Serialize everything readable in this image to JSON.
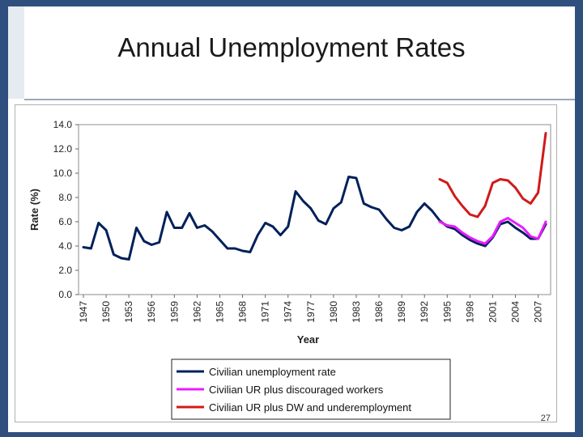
{
  "slide": {
    "title": "Annual Unemployment Rates",
    "page_number": "27"
  },
  "chart_data": {
    "type": "line",
    "title": "",
    "xlabel": "Year",
    "ylabel": "Rate (%)",
    "ylim": [
      0,
      14
    ],
    "yticks": [
      "0.0",
      "2.0",
      "4.0",
      "6.0",
      "8.0",
      "10.0",
      "12.0",
      "14.0"
    ],
    "xlim": [
      1947,
      2008
    ],
    "xticks": [
      "1947",
      "1950",
      "1953",
      "1956",
      "1959",
      "1962",
      "1965",
      "1968",
      "1971",
      "1974",
      "1977",
      "1980",
      "1983",
      "1986",
      "1989",
      "1992",
      "1995",
      "1998",
      "2001",
      "2004",
      "2007"
    ],
    "series": [
      {
        "name": "Civilian unemployment rate",
        "color": "#00205b",
        "x": [
          1947,
          1948,
          1949,
          1950,
          1951,
          1952,
          1953,
          1954,
          1955,
          1956,
          1957,
          1958,
          1959,
          1960,
          1961,
          1962,
          1963,
          1964,
          1965,
          1966,
          1967,
          1968,
          1969,
          1970,
          1971,
          1972,
          1973,
          1974,
          1975,
          1976,
          1977,
          1978,
          1979,
          1980,
          1981,
          1982,
          1983,
          1984,
          1985,
          1986,
          1987,
          1988,
          1989,
          1990,
          1991,
          1992,
          1993,
          1994,
          1995,
          1996,
          1997,
          1998,
          1999,
          2000,
          2001,
          2002,
          2003,
          2004,
          2005,
          2006,
          2007,
          2008
        ],
        "values": [
          3.9,
          3.8,
          5.9,
          5.3,
          3.3,
          3.0,
          2.9,
          5.5,
          4.4,
          4.1,
          4.3,
          6.8,
          5.5,
          5.5,
          6.7,
          5.5,
          5.7,
          5.2,
          4.5,
          3.8,
          3.8,
          3.6,
          3.5,
          4.9,
          5.9,
          5.6,
          4.9,
          5.6,
          8.5,
          7.7,
          7.1,
          6.1,
          5.8,
          7.1,
          7.6,
          9.7,
          9.6,
          7.5,
          7.2,
          7.0,
          6.2,
          5.5,
          5.3,
          5.6,
          6.8,
          7.5,
          6.9,
          6.1,
          5.6,
          5.4,
          4.9,
          4.5,
          4.2,
          4.0,
          4.7,
          5.8,
          6.0,
          5.5,
          5.1,
          4.6,
          4.6,
          5.8
        ]
      },
      {
        "name": "Civilian UR plus discouraged workers",
        "color": "#e81cff",
        "x": [
          1994,
          1995,
          1996,
          1997,
          1998,
          1999,
          2000,
          2001,
          2002,
          2003,
          2004,
          2005,
          2006,
          2007,
          2008
        ],
        "values": [
          6.0,
          5.7,
          5.6,
          5.1,
          4.7,
          4.4,
          4.2,
          4.8,
          6.0,
          6.3,
          5.9,
          5.5,
          4.8,
          4.6,
          6.0
        ]
      },
      {
        "name": "Civilian UR plus DW and underemployment",
        "color": "#d11a1a",
        "x": [
          1994,
          1995,
          1996,
          1997,
          1998,
          1999,
          2000,
          2001,
          2002,
          2003,
          2004,
          2005,
          2006,
          2007,
          2008
        ],
        "values": [
          9.5,
          9.2,
          8.1,
          7.3,
          6.6,
          6.4,
          7.3,
          9.2,
          9.5,
          9.4,
          8.8,
          7.9,
          7.5,
          8.4,
          13.3
        ]
      }
    ],
    "legend_position": "bottom-center"
  }
}
